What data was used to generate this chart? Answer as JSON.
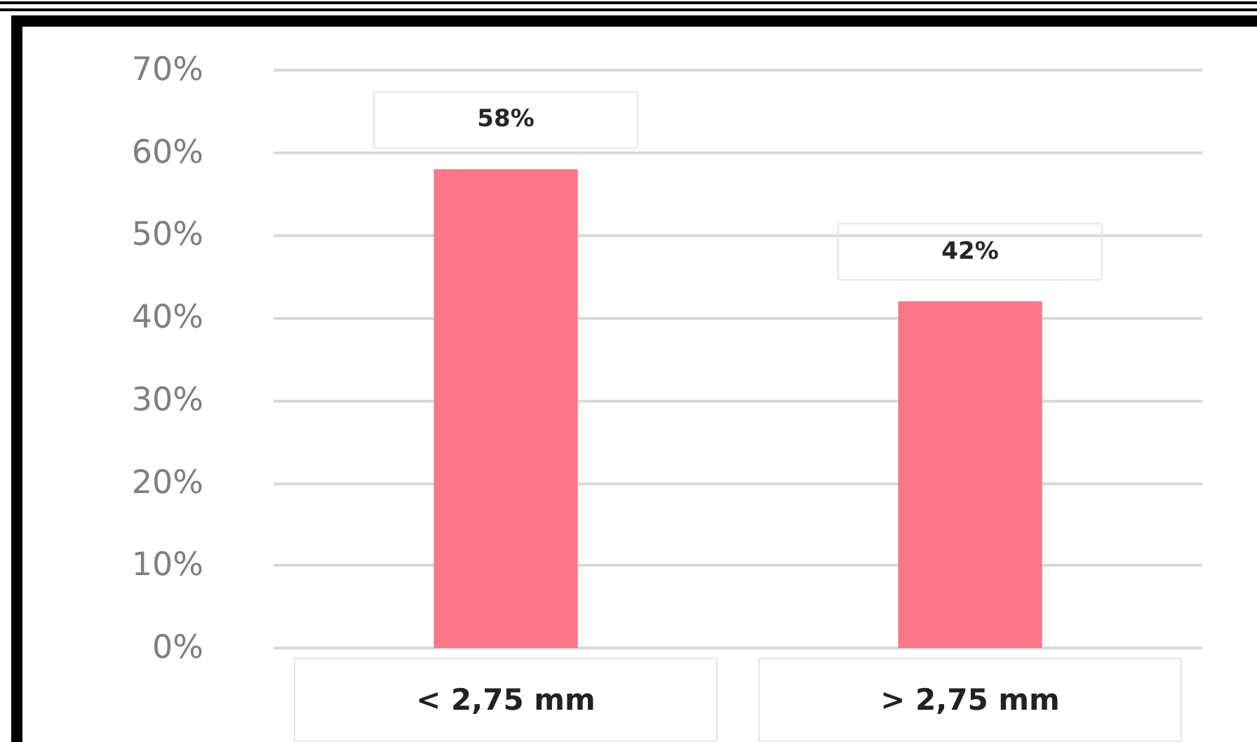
{
  "chart_data": {
    "type": "bar",
    "categories": [
      "< 2,75 mm",
      "> 2,75 mm"
    ],
    "values": [
      58,
      42
    ],
    "color": "#fb7689",
    "value_labels": [
      "58%",
      "42%"
    ],
    "ylim": [
      0,
      70
    ],
    "yticks": [
      {
        "value": 0,
        "label": "0%"
      },
      {
        "value": 10,
        "label": "10%"
      },
      {
        "value": 20,
        "label": "20%"
      },
      {
        "value": 30,
        "label": "30%"
      },
      {
        "value": 40,
        "label": "40%"
      },
      {
        "value": 50,
        "label": "50%"
      },
      {
        "value": 60,
        "label": "60%"
      },
      {
        "value": 70,
        "label": "70%"
      }
    ],
    "grid": "y"
  }
}
